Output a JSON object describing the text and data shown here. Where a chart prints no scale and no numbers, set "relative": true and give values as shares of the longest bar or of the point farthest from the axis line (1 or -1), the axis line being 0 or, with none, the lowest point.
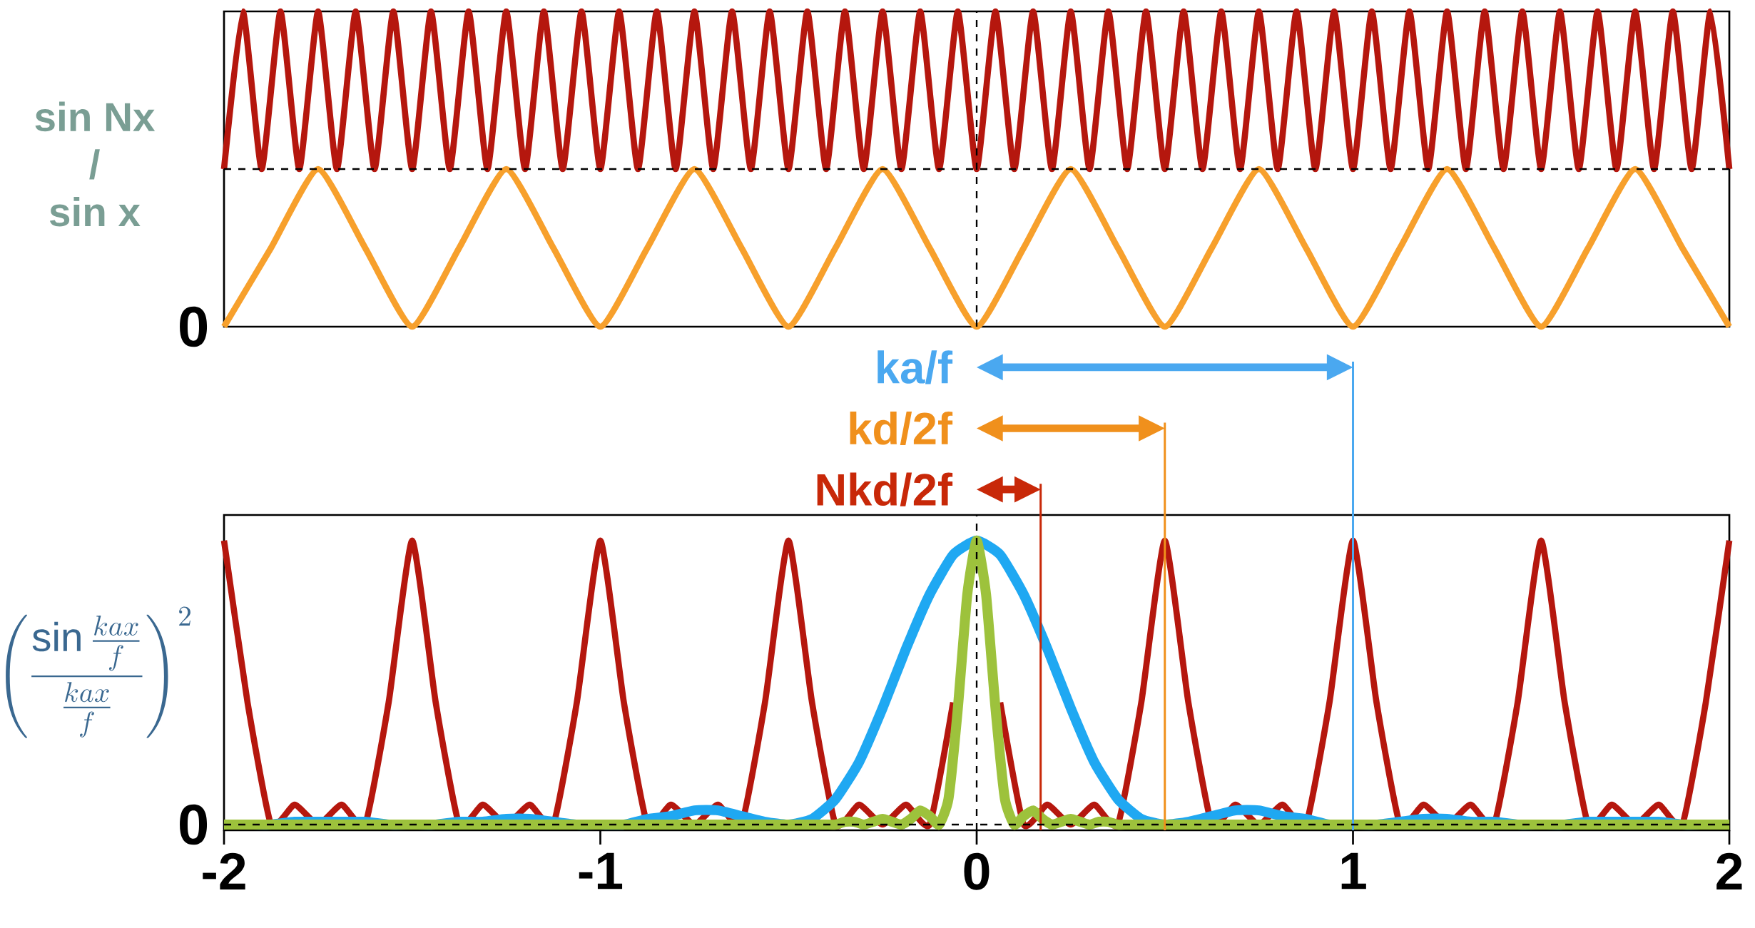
{
  "chart_data": [
    {
      "type": "line",
      "relative": true,
      "xlim": [
        -2,
        2
      ],
      "tick_labels": false,
      "ylabel": "\\begin{array}{c}\\text{sin Nx}\\\\\\text{/}\\\\\\text{sin x}\\end{array}",
      "annotations": [
        {
          "text": "0",
          "x": -2,
          "y": 0
        }
      ],
      "ref_lines": [
        {
          "axis": "x",
          "value": 0,
          "color": "#000000",
          "line_style": "dashed"
        },
        {
          "axis": "y",
          "value": 0.5,
          "color": "#000000",
          "line_style": "dashed"
        }
      ],
      "series": [
        {
          "color": "#b5170e",
          "x": [
            -2,
            -1.95,
            -1.9,
            -1.85,
            -1.8,
            -1.75,
            -1.7,
            -1.65,
            -1.6,
            -1.55,
            -1.5,
            -1.45,
            -1.4,
            -1.35,
            -1.3,
            -1.25,
            -1.2,
            -1.15,
            -1.1,
            -1.05,
            -1,
            -0.95,
            -0.9,
            -0.85,
            -0.8,
            -0.75,
            -0.7,
            -0.65,
            -0.6,
            -0.55,
            -0.5,
            -0.45,
            -0.4,
            -0.35,
            -0.3,
            -0.25,
            -0.2,
            -0.15,
            -0.1,
            -0.05,
            0,
            0.05,
            0.1,
            0.15,
            0.2,
            0.25,
            0.3,
            0.35,
            0.4,
            0.45,
            0.5,
            0.55,
            0.6,
            0.65,
            0.7,
            0.75,
            0.8,
            0.85,
            0.9,
            0.95,
            1,
            1.05,
            1.1,
            1.15,
            1.2,
            1.25,
            1.3,
            1.35,
            1.4,
            1.45,
            1.5,
            1.55,
            1.6,
            1.65,
            1.7,
            1.75,
            1.8,
            1.85,
            1.9,
            1.95,
            2
          ],
          "values": [
            0.5,
            1,
            0.5,
            1,
            0.5,
            1,
            0.5,
            1,
            0.5,
            1,
            0.5,
            1,
            0.5,
            1,
            0.5,
            1,
            0.5,
            1,
            0.5,
            1,
            0.5,
            1,
            0.5,
            1,
            0.5,
            1,
            0.5,
            1,
            0.5,
            1,
            0.5,
            1,
            0.5,
            1,
            0.5,
            1,
            0.5,
            1,
            0.5,
            1,
            0.5,
            1,
            0.5,
            1,
            0.5,
            1,
            0.5,
            1,
            0.5,
            1,
            0.5,
            1,
            0.5,
            1,
            0.5,
            1,
            0.5,
            1,
            0.5,
            1,
            0.5,
            1,
            0.5,
            1,
            0.5,
            1,
            0.5,
            1,
            0.5,
            1,
            0.5,
            1,
            0.5,
            1,
            0.5,
            1,
            0.5,
            1,
            0.5,
            1,
            0.5
          ]
        },
        {
          "color": "#f7a02c",
          "x": [
            -2,
            -1.875,
            -1.75,
            -1.625,
            -1.5,
            -1.375,
            -1.25,
            -1.125,
            -1,
            -0.875,
            -0.75,
            -0.625,
            -0.5,
            -0.375,
            -0.25,
            -0.125,
            0,
            0.125,
            0.25,
            0.375,
            0.5,
            0.625,
            0.75,
            0.875,
            1,
            1.125,
            1.25,
            1.375,
            1.5,
            1.625,
            1.75,
            1.875,
            2
          ],
          "values": [
            0,
            0.25,
            0.5,
            0.25,
            0,
            0.25,
            0.5,
            0.25,
            0,
            0.25,
            0.5,
            0.25,
            0,
            0.25,
            0.5,
            0.25,
            0,
            0.25,
            0.5,
            0.25,
            0,
            0.25,
            0.5,
            0.25,
            0,
            0.25,
            0.5,
            0.25,
            0,
            0.25,
            0.5,
            0.25,
            0
          ]
        }
      ]
    },
    {
      "type": "line",
      "relative": true,
      "xlim": [
        -2,
        2
      ],
      "xticks": [
        -2,
        -1,
        0,
        1,
        2
      ],
      "tick_labels": "x",
      "ylabel": "\\left(\\frac{\\sin\\frac{kax}{f}}{\\frac{kax}{f}}\\right)^2",
      "annotations": [
        {
          "text": "0",
          "x": -2,
          "y": 0
        }
      ],
      "ref_lines": [
        {
          "axis": "x",
          "value": 1,
          "label": "ka/f",
          "color": "#4aa8f0"
        },
        {
          "axis": "x",
          "value": 0.5,
          "label": "kd/2f",
          "color": "#f0901c"
        },
        {
          "axis": "x",
          "value": 0.17,
          "label": "Nkd/2f",
          "color": "#c82808"
        },
        {
          "axis": "x",
          "value": 0,
          "color": "#000000",
          "line_style": "dashed"
        },
        {
          "axis": "y",
          "value": 0,
          "color": "#000000",
          "line_style": "dashed"
        }
      ],
      "x": [
        -2,
        -1.9375,
        -1.875,
        -1.8125,
        -1.75,
        -1.6875,
        -1.625,
        -1.5625,
        -1.5,
        -1.4375,
        -1.375,
        -1.3125,
        -1.25,
        -1.1875,
        -1.125,
        -1.0625,
        -1,
        -0.9375,
        -0.875,
        -0.8125,
        -0.75,
        -0.6875,
        -0.625,
        -0.5625,
        -0.5,
        -0.4375,
        -0.375,
        -0.3125,
        -0.25,
        -0.1875,
        -0.125,
        -0.0625,
        0,
        0.0625,
        0.125,
        0.1875,
        0.25,
        0.3125,
        0.375,
        0.4375,
        0.5,
        0.5625,
        0.625,
        0.6875,
        0.75,
        0.8125,
        0.875,
        0.9375,
        1,
        1.0625,
        1.125,
        1.1875,
        1.25,
        1.3125,
        1.375,
        1.4375,
        1.5,
        1.5625,
        1.625,
        1.6875,
        1.75,
        1.8125,
        1.875,
        1.9375,
        2
      ],
      "series": [
        {
          "color": "#b5170e",
          "values": [
            1,
            0.43,
            0,
            0.07,
            0,
            0.07,
            0,
            0.43,
            1,
            0.43,
            0,
            0.07,
            0,
            0.07,
            0,
            0.43,
            1,
            0.43,
            0,
            0.07,
            0,
            0.07,
            0,
            0.43,
            1,
            0.43,
            0,
            0.07,
            0,
            0.07,
            0,
            0.43,
            null,
            0.43,
            0,
            0.07,
            0,
            0.07,
            0,
            0.43,
            1,
            0.43,
            0,
            0.07,
            0,
            0.07,
            0,
            0.43,
            1,
            0.43,
            0,
            0.07,
            0,
            0.07,
            0,
            0.43,
            1,
            0.43,
            0,
            0.07,
            0,
            0.07,
            0,
            0.43,
            1
          ]
        },
        {
          "color": "#1fa8f2",
          "values": [
            0,
            0,
            0,
            0.01,
            0.01,
            0.01,
            0.01,
            0,
            0,
            0,
            0.01,
            0.01,
            0.02,
            0.02,
            0.01,
            0,
            0,
            0,
            0.02,
            0.03,
            0.05,
            0.05,
            0.03,
            0.01,
            0,
            0.02,
            0.09,
            0.22,
            0.41,
            0.62,
            0.81,
            0.95,
            1,
            0.95,
            0.81,
            0.62,
            0.41,
            0.22,
            0.09,
            0.02,
            0,
            0.01,
            0.03,
            0.05,
            0.05,
            0.03,
            0.02,
            0,
            0,
            0,
            0.01,
            0.02,
            0.02,
            0.01,
            0.01,
            0,
            0,
            0,
            0.01,
            0.01,
            0.01,
            0.01,
            0,
            0,
            0
          ]
        },
        {
          "color": "#9dc23c",
          "x": [
            -2,
            -0.5,
            -0.475,
            -0.45,
            -0.425,
            -0.4,
            -0.375,
            -0.35,
            -0.325,
            -0.3,
            -0.275,
            -0.25,
            -0.225,
            -0.2,
            -0.175,
            -0.15,
            -0.125,
            -0.1,
            -0.075,
            -0.05,
            -0.025,
            0,
            0.025,
            0.05,
            0.075,
            0.1,
            0.125,
            0.15,
            0.175,
            0.2,
            0.225,
            0.25,
            0.275,
            0.3,
            0.325,
            0.35,
            0.375,
            0.4,
            0.425,
            0.45,
            0.475,
            0.5,
            2
          ],
          "values": [
            0,
            0,
            0,
            0,
            0,
            0,
            0,
            0.01,
            0.01,
            0,
            0.01,
            0.02,
            0.01,
            0,
            0.02,
            0.05,
            0.03,
            0,
            0.09,
            0.41,
            0.81,
            1,
            0.81,
            0.41,
            0.09,
            0,
            0.03,
            0.05,
            0.02,
            0,
            0.01,
            0.02,
            0.01,
            0,
            0.01,
            0.01,
            0,
            0,
            0,
            0,
            0,
            0,
            0
          ]
        }
      ]
    }
  ]
}
